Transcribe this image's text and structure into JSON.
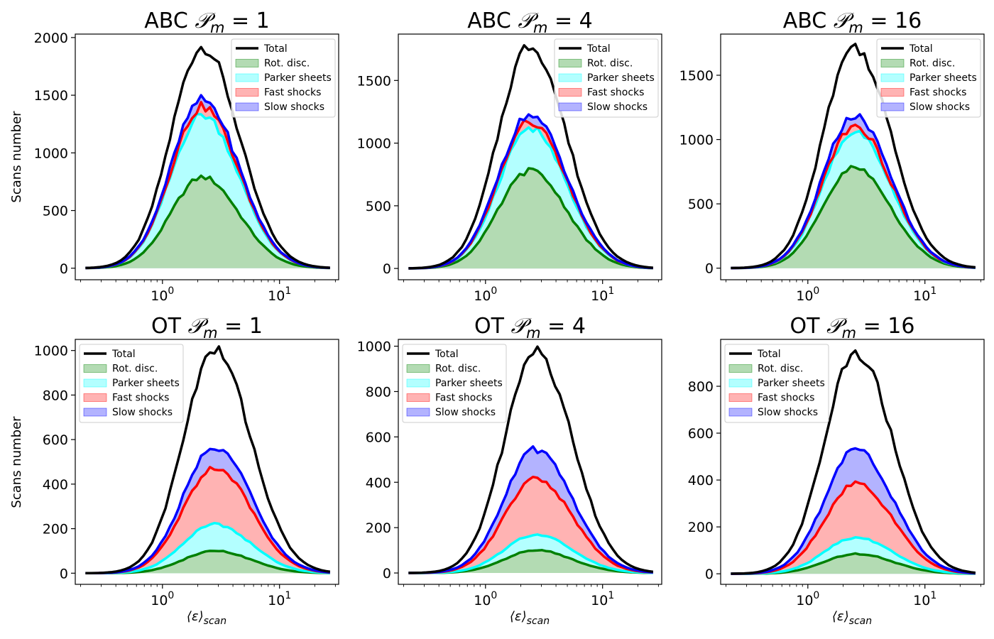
{
  "figure": {
    "xlabel": "⟨ε⟩",
    "xlabel_sub": "scan",
    "ylabel": "Scans number"
  },
  "legend_labels": [
    "Total",
    "Rot. disc.",
    "Parker sheets",
    "Fast shocks",
    "Slow shocks"
  ],
  "colors": {
    "total": "#000000",
    "rot": "#008000",
    "rot_fill": "#b3dbb3",
    "parker": "#00ffff",
    "parker_fill": "#b3ffff",
    "fast": "#ff0000",
    "fast_fill": "#ffb3b3",
    "slow": "#0000ff",
    "slow_fill": "#b3b3ff"
  },
  "chart_data": [
    {
      "type": "area",
      "title_prefix": "ABC",
      "title_param": "m",
      "title_value": "= 1",
      "xscale": "log",
      "xlim": [
        0.18,
        32
      ],
      "ylim": [
        -100,
        2030
      ],
      "yticks": [
        "0",
        "500",
        "1000",
        "1500",
        "2000"
      ],
      "ytick_values": [
        0,
        500,
        1000,
        1500,
        2000
      ],
      "xticks": [
        {
          "base": "10",
          "exp": "0",
          "value": 1
        },
        {
          "base": "10",
          "exp": "1",
          "value": 10
        }
      ],
      "legend": "top-right",
      "peak_x": 2.2,
      "series": [
        {
          "name": "Total",
          "peak": 1920
        },
        {
          "name": "Rot. disc.",
          "peak": 790
        },
        {
          "name": "Parker sheets",
          "peak": 1330
        },
        {
          "name": "Fast shocks",
          "peak": 1400
        },
        {
          "name": "Slow shocks",
          "peak": 1460
        }
      ]
    },
    {
      "type": "area",
      "title_prefix": "ABC",
      "title_param": "m",
      "title_value": "= 4",
      "xscale": "log",
      "xlim": [
        0.18,
        32
      ],
      "ylim": [
        -90,
        1870
      ],
      "yticks": [
        "0",
        "500",
        "1000",
        "1500"
      ],
      "ytick_values": [
        0,
        500,
        1000,
        1500
      ],
      "xticks": [
        {
          "base": "10",
          "exp": "0",
          "value": 1
        },
        {
          "base": "10",
          "exp": "1",
          "value": 10
        }
      ],
      "legend": "top-right",
      "peak_x": 2.4,
      "series": [
        {
          "name": "Total",
          "peak": 1780
        },
        {
          "name": "Rot. disc.",
          "peak": 780
        },
        {
          "name": "Parker sheets",
          "peak": 1120
        },
        {
          "name": "Fast shocks",
          "peak": 1170
        },
        {
          "name": "Slow shocks",
          "peak": 1225
        }
      ]
    },
    {
      "type": "area",
      "title_prefix": "ABC",
      "title_param": "m",
      "title_value": "= 16",
      "xscale": "log",
      "xlim": [
        0.18,
        32
      ],
      "ylim": [
        -90,
        1820
      ],
      "yticks": [
        "0",
        "500",
        "1000",
        "1500"
      ],
      "ytick_values": [
        0,
        500,
        1000,
        1500
      ],
      "xticks": [
        {
          "base": "10",
          "exp": "0",
          "value": 1
        },
        {
          "base": "10",
          "exp": "1",
          "value": 10
        }
      ],
      "legend": "top-right",
      "peak_x": 2.5,
      "series": [
        {
          "name": "Total",
          "peak": 1720
        },
        {
          "name": "Rot. disc.",
          "peak": 780
        },
        {
          "name": "Parker sheets",
          "peak": 1060
        },
        {
          "name": "Fast shocks",
          "peak": 1110
        },
        {
          "name": "Slow shocks",
          "peak": 1180
        }
      ]
    },
    {
      "type": "area",
      "title_prefix": "OT",
      "title_param": "m",
      "title_value": "= 1",
      "xscale": "log",
      "xlim": [
        0.18,
        32
      ],
      "ylim": [
        -50,
        1050
      ],
      "yticks": [
        "0",
        "200",
        "400",
        "600",
        "800",
        "1000"
      ],
      "ytick_values": [
        0,
        200,
        400,
        600,
        800,
        1000
      ],
      "xticks": [
        {
          "base": "10",
          "exp": "0",
          "value": 1
        },
        {
          "base": "10",
          "exp": "1",
          "value": 10
        }
      ],
      "legend": "top-left",
      "peak_x": 2.8,
      "series": [
        {
          "name": "Total",
          "peak": 1000
        },
        {
          "name": "Rot. disc.",
          "peak": 100
        },
        {
          "name": "Parker sheets",
          "peak": 220
        },
        {
          "name": "Fast shocks",
          "peak": 475
        },
        {
          "name": "Slow shocks",
          "peak": 570
        }
      ]
    },
    {
      "type": "area",
      "title_prefix": "OT",
      "title_param": "m",
      "title_value": "= 4",
      "xscale": "log",
      "xlim": [
        0.18,
        32
      ],
      "ylim": [
        -50,
        1030
      ],
      "yticks": [
        "0",
        "200",
        "400",
        "600",
        "800",
        "1000"
      ],
      "ytick_values": [
        0,
        200,
        400,
        600,
        800,
        1000
      ],
      "xticks": [
        {
          "base": "10",
          "exp": "0",
          "value": 1
        },
        {
          "base": "10",
          "exp": "1",
          "value": 10
        }
      ],
      "legend": "top-left",
      "peak_x": 2.7,
      "series": [
        {
          "name": "Total",
          "peak": 975
        },
        {
          "name": "Rot. disc.",
          "peak": 100
        },
        {
          "name": "Parker sheets",
          "peak": 170
        },
        {
          "name": "Fast shocks",
          "peak": 415
        },
        {
          "name": "Slow shocks",
          "peak": 545
        }
      ]
    },
    {
      "type": "area",
      "title_prefix": "OT",
      "title_param": "m",
      "title_value": "= 16",
      "xscale": "log",
      "xlim": [
        0.18,
        32
      ],
      "ylim": [
        -45,
        1000
      ],
      "yticks": [
        "0",
        "200",
        "400",
        "600",
        "800"
      ],
      "ytick_values": [
        0,
        200,
        400,
        600,
        800
      ],
      "xticks": [
        {
          "base": "10",
          "exp": "0",
          "value": 1
        },
        {
          "base": "10",
          "exp": "1",
          "value": 10
        }
      ],
      "legend": "top-left",
      "peak_x": 2.6,
      "series": [
        {
          "name": "Total",
          "peak": 945
        },
        {
          "name": "Rot. disc.",
          "peak": 85
        },
        {
          "name": "Parker sheets",
          "peak": 155
        },
        {
          "name": "Fast shocks",
          "peak": 385
        },
        {
          "name": "Slow shocks",
          "peak": 530
        }
      ]
    }
  ]
}
